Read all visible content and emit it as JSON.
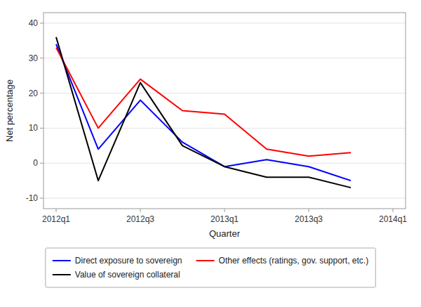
{
  "chart_data": {
    "type": "line",
    "x": [
      0,
      1,
      2,
      3,
      4,
      5,
      6,
      7
    ],
    "series": [
      {
        "name": "Direct exposure to sovereign",
        "color": "blue",
        "values": [
          34,
          4,
          18,
          6,
          -1,
          1,
          -1,
          -5
        ]
      },
      {
        "name": "Other effects (ratings, gov. support, etc.)",
        "color": "red",
        "values": [
          33,
          10,
          24,
          15,
          14,
          4,
          2,
          3
        ]
      },
      {
        "name": "Value of sovereign collateral",
        "color": "black",
        "values": [
          36,
          -5,
          23,
          5,
          -1,
          -4,
          -4,
          -7
        ]
      }
    ],
    "xlim": [
      -0.3,
      8.3
    ],
    "xticks": [
      {
        "value": 0,
        "label": "2012q1"
      },
      {
        "value": 2,
        "label": "2012q3"
      },
      {
        "value": 4,
        "label": "2013q1"
      },
      {
        "value": 6,
        "label": "2013q3"
      },
      {
        "value": 8,
        "label": "2014q1"
      }
    ],
    "ylim": [
      -13,
      43
    ],
    "yticks": [
      -10,
      0,
      10,
      20,
      30,
      40
    ],
    "xlabel": "Quarter",
    "ylabel": "Net percentage",
    "grid": true,
    "legend": "bottom"
  }
}
